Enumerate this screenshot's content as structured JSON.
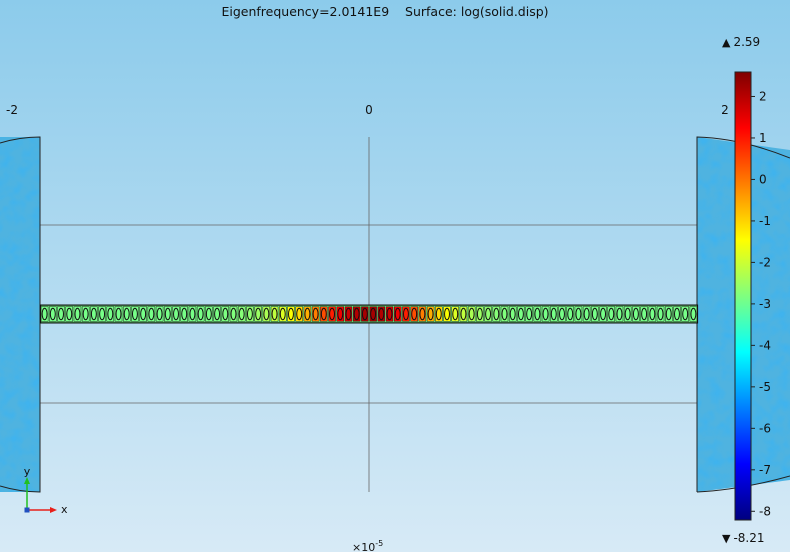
{
  "chart_data": {
    "type": "heatmap",
    "title": "Eigenfrequency=2.0141E9    Surface: log(solid.disp)",
    "x_ticks": [
      "-2",
      "0",
      "2"
    ],
    "x_scale_label": "×10",
    "x_scale_exp": "-5",
    "xlim": [
      -2.05,
      2.55
    ],
    "ylim": [
      -1.35,
      1.35
    ],
    "beam": {
      "x_range": [
        -2,
        2
      ],
      "y_range": [
        -0.05,
        0.05
      ],
      "cell_count": 80,
      "peak_x": 0,
      "peak_value": 2.2,
      "base_value": -2.9
    },
    "colorbar": {
      "max_label": "2.59",
      "min_label": "-8.21",
      "max": 2.59,
      "min": -8.21,
      "ticks": [
        "2",
        "1",
        "0",
        "-1",
        "-2",
        "-3",
        "-4",
        "-5",
        "-6",
        "-7",
        "-8"
      ],
      "tick_values": [
        2,
        1,
        0,
        -1,
        -2,
        -3,
        -4,
        -5,
        -6,
        -7,
        -8
      ],
      "colormap": [
        "#00007f",
        "#0000ff",
        "#007fff",
        "#00ffff",
        "#7fff7f",
        "#ffff00",
        "#ff7f00",
        "#ff0000",
        "#7f0000"
      ],
      "max_marker": "▲",
      "min_marker": "▼"
    },
    "axes_triad": {
      "x_label": "x",
      "y_label": "y",
      "x_color": "#e8201a",
      "y_color": "#20c020"
    },
    "background_top": "#8ccbeb",
    "background_bottom": "#d7eaf6"
  }
}
